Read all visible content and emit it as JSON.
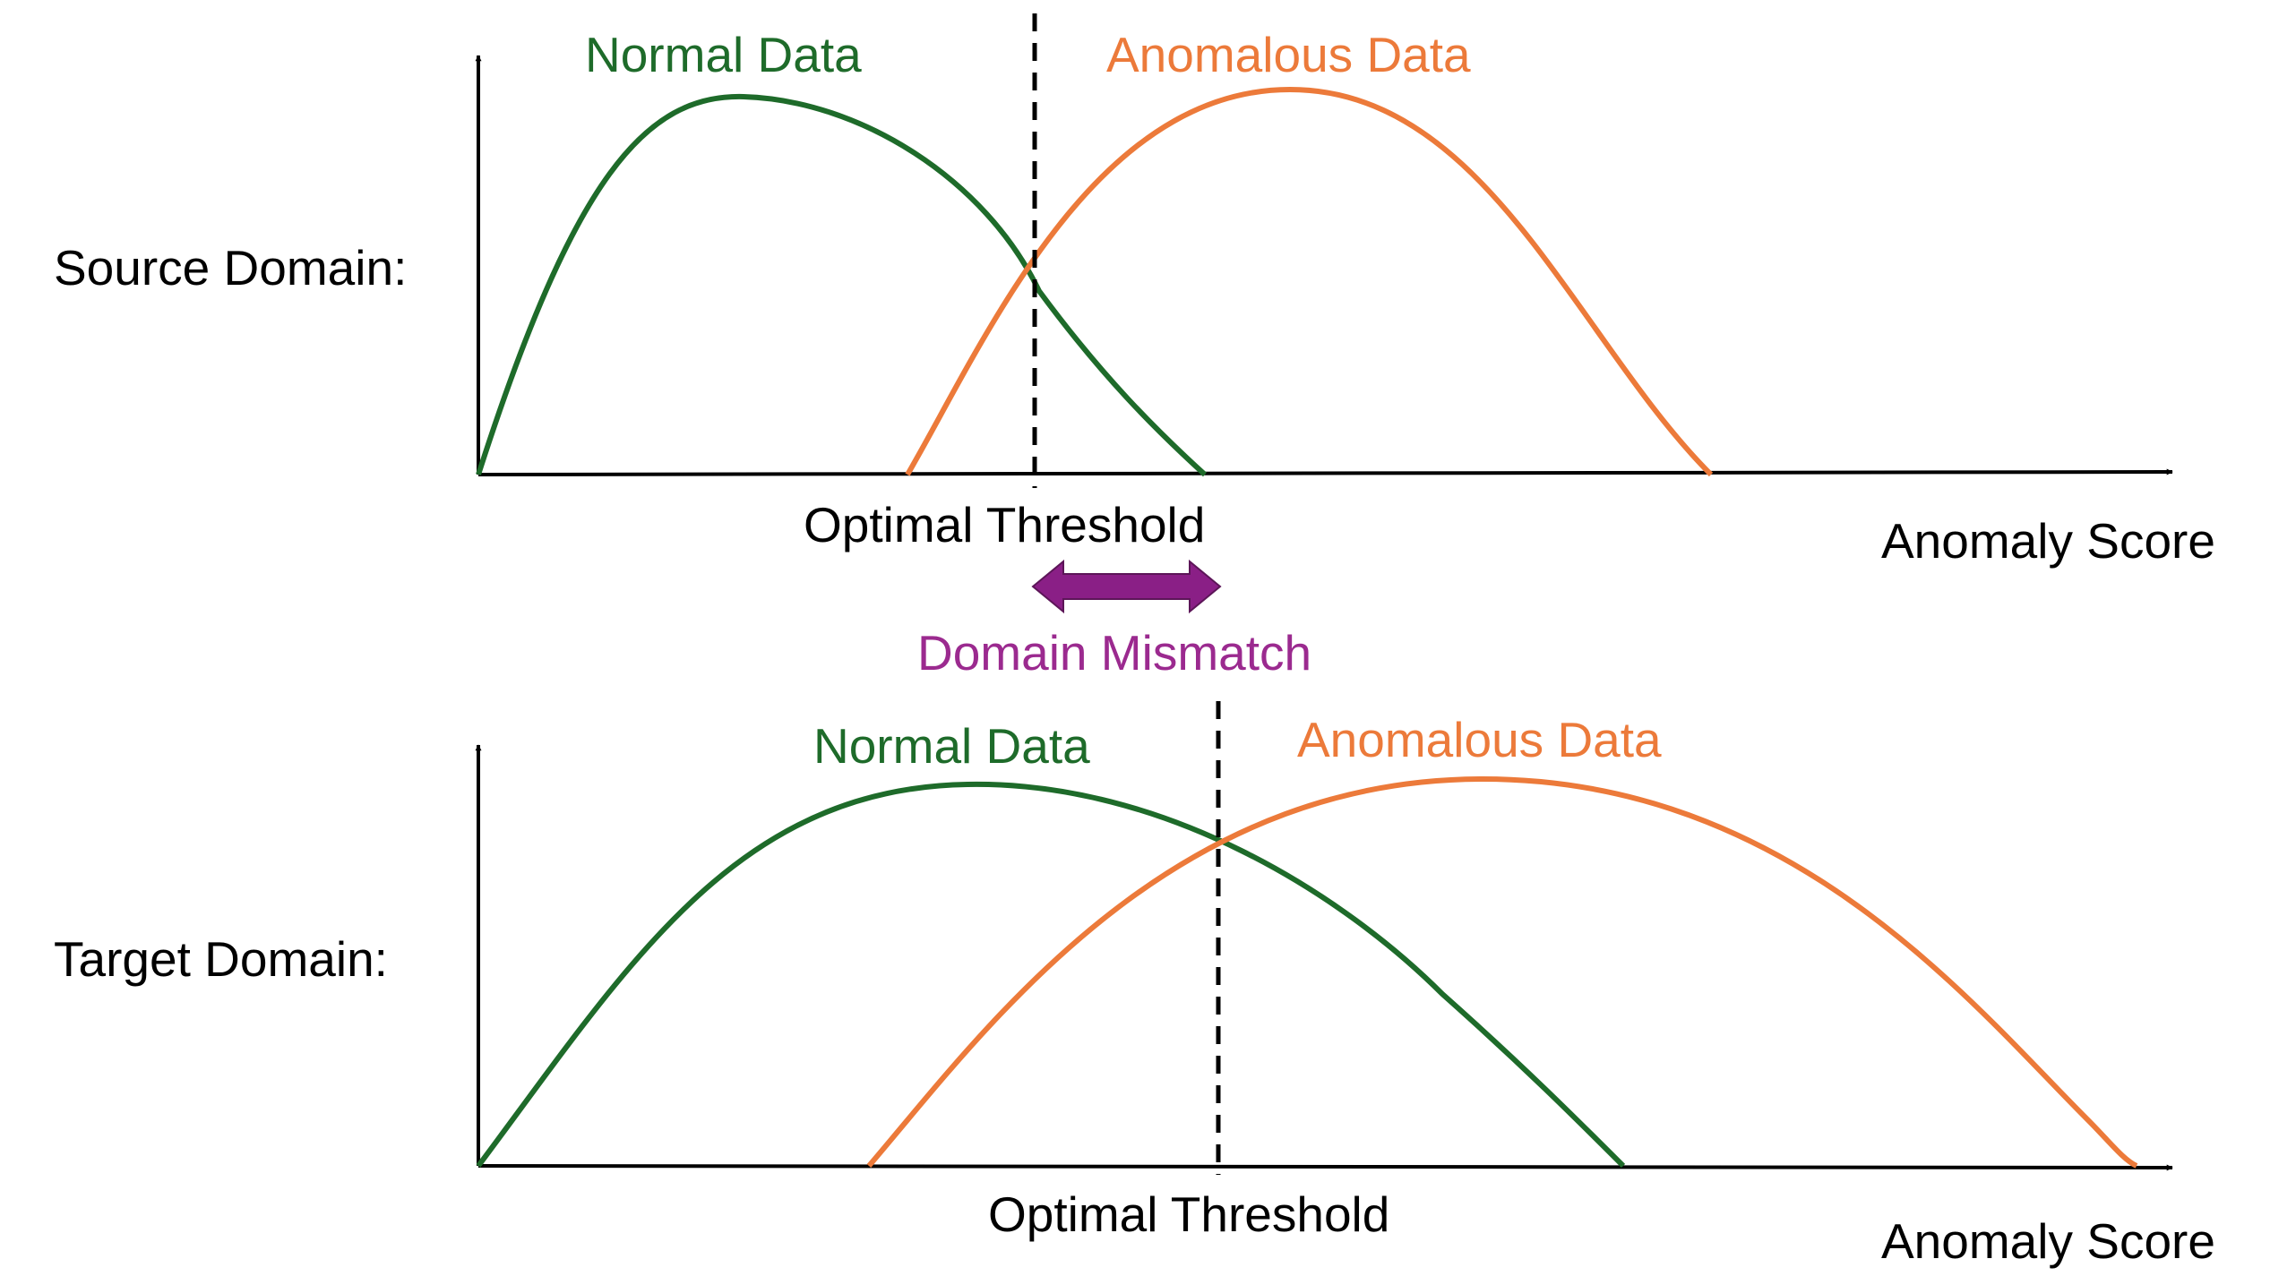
{
  "colors": {
    "normal": "#1e6b2a",
    "anomalous": "#ec7a3a",
    "axis": "#000000",
    "mismatch": "#9b2a8f",
    "mismatch_arrow_fill": "#8a1f86",
    "text": "#000000"
  },
  "source": {
    "domain_label": "Source Domain:",
    "normal_label": "Normal Data",
    "anomalous_label": "Anomalous Data",
    "threshold_label": "Optimal Threshold",
    "axis_label": "Anomaly Score"
  },
  "mismatch": {
    "label": "Domain Mismatch",
    "icon": "double-headed-arrow-icon"
  },
  "target": {
    "domain_label": "Target Domain:",
    "normal_label": "Normal Data",
    "anomalous_label": "Anomalous Data",
    "threshold_label": "Optimal Threshold",
    "axis_label": "Anomaly Score"
  }
}
